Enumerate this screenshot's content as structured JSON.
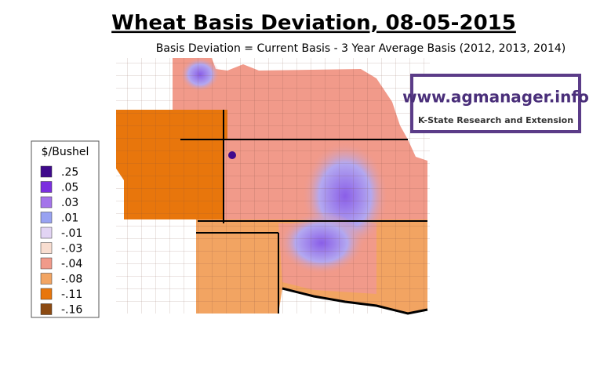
{
  "header": {
    "title": "Wheat Basis Deviation, 08-05-2015",
    "subtitle": "Basis Deviation = Current Basis - 3 Year Average Basis (2012, 2013, 2014)"
  },
  "logo": {
    "url": "www.agmanager.info",
    "org": "K-State Research and Extension"
  },
  "legend": {
    "title": "$/Bushel",
    "items": [
      {
        "label": ".25",
        "color": "#3f0a8c"
      },
      {
        "label": ".05",
        "color": "#7b2fe0"
      },
      {
        "label": ".03",
        "color": "#a474ea"
      },
      {
        "label": ".01",
        "color": "#98a2f2"
      },
      {
        "label": "-.01",
        "color": "#e2d4f4"
      },
      {
        "label": "-.03",
        "color": "#f8ddd0"
      },
      {
        "label": "-.04",
        "color": "#f19a8a"
      },
      {
        "label": "-.08",
        "color": "#f2a462"
      },
      {
        "label": "-.11",
        "color": "#e8760c"
      },
      {
        "label": "-.16",
        "color": "#8c4a12"
      }
    ]
  }
}
